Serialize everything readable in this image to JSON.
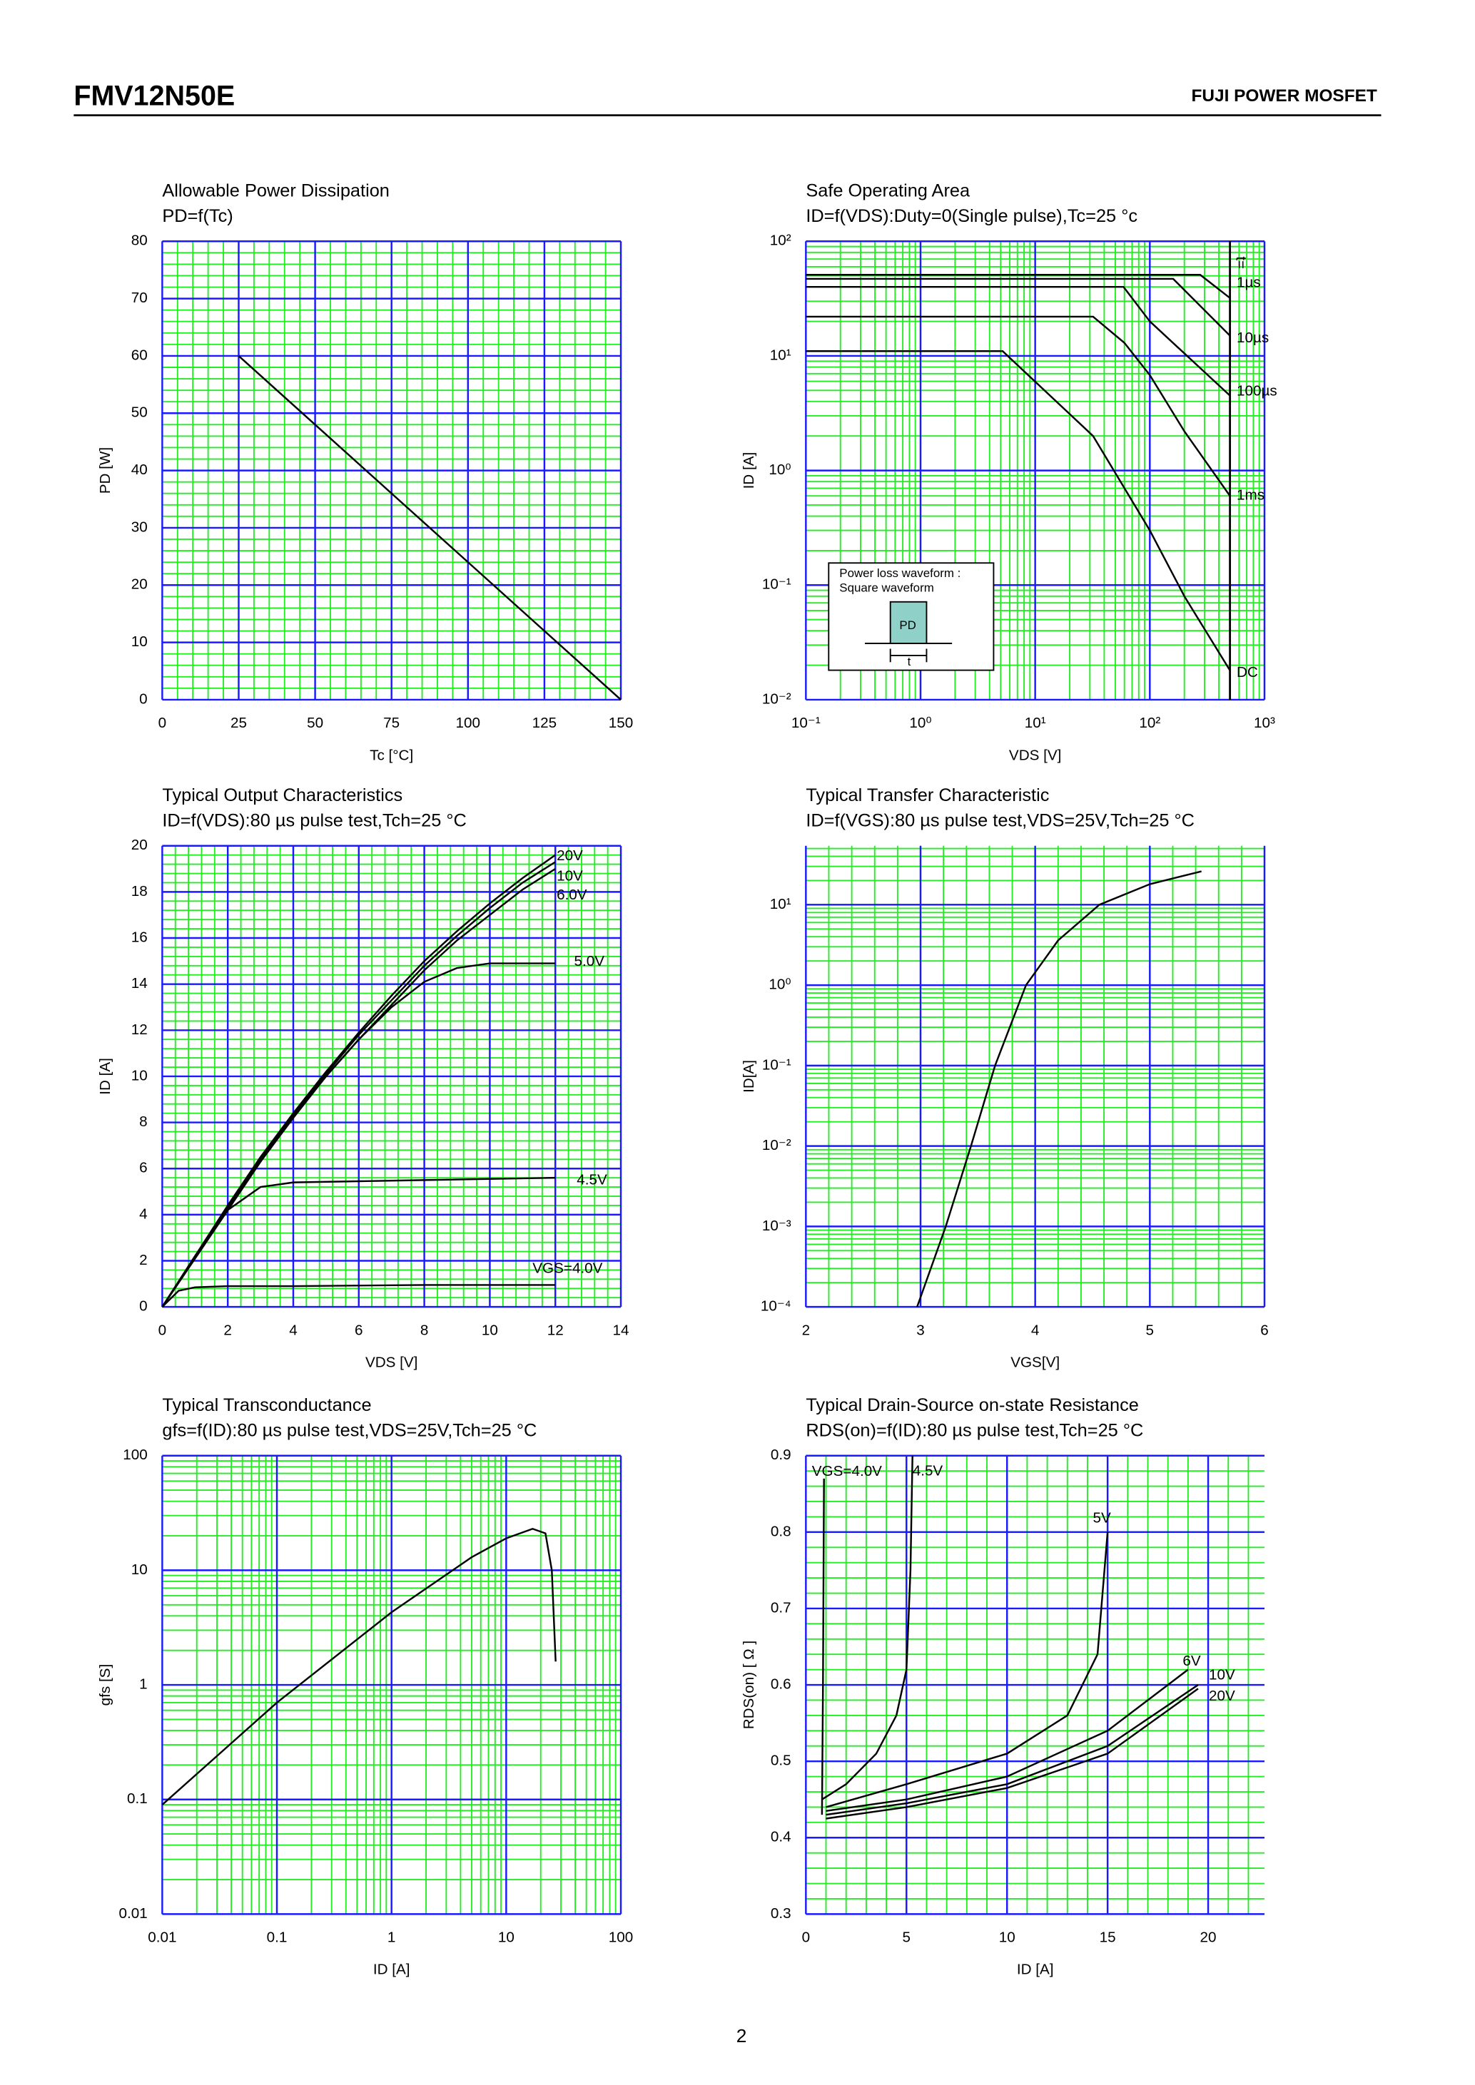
{
  "header": {
    "part_number": "FMV12N50E",
    "series": "FUJI POWER MOSFET"
  },
  "page_number": "2",
  "chart_data": [
    {
      "type": "line",
      "title": "Allowable Power Dissipation",
      "subtitle": "PD=f(Tc)",
      "x_label": "Tc [°C]",
      "y_label": "PD [W]",
      "xscale": "linear",
      "yscale": "linear",
      "xlim": [
        0,
        150
      ],
      "ylim": [
        0,
        80
      ],
      "xticks": [
        0,
        25,
        50,
        75,
        100,
        125,
        150
      ],
      "yticks": [
        0,
        10,
        20,
        30,
        40,
        50,
        60,
        70,
        80
      ],
      "grid": true,
      "grid_color": "#1a1aff",
      "minor_grid_color": "#22ee22",
      "series": [
        {
          "color": "#000000",
          "x": [
            25,
            150
          ],
          "values": [
            60,
            0
          ]
        }
      ]
    },
    {
      "type": "line",
      "title": "Safe Operating Area",
      "subtitle": "ID=f(VDS):Duty=0(Single pulse),Tc=25 °c",
      "x_label": "VDS [V]",
      "y_label": "ID [A]",
      "xscale": "log",
      "yscale": "log",
      "xlim": [
        0.1,
        1000
      ],
      "ylim": [
        0.01,
        100
      ],
      "xticks": [
        {
          "value": 0.1,
          "label": "10⁻¹"
        },
        {
          "value": 1,
          "label": "10⁰"
        },
        {
          "value": 10,
          "label": "10¹"
        },
        {
          "value": 100,
          "label": "10²"
        },
        {
          "value": 1000,
          "label": "10³"
        }
      ],
      "yticks": [
        {
          "value": 0.01,
          "label": "10⁻²"
        },
        {
          "value": 0.1,
          "label": "10⁻¹"
        },
        {
          "value": 1,
          "label": "10⁰"
        },
        {
          "value": 10,
          "label": "10¹"
        },
        {
          "value": 100,
          "label": "10²"
        }
      ],
      "grid": true,
      "grid_color": "#1a1aff",
      "minor_grid_color": "#22ee22",
      "annotation": "t=",
      "vlines": [
        500
      ],
      "inset": {
        "lines": [
          "Power loss waveform :",
          "Square waveform"
        ],
        "pulse_label": "PD",
        "width_label": "t"
      },
      "series": [
        {
          "name": "1µs",
          "color": "#000000",
          "x": [
            0.1,
            275,
            500
          ],
          "values": [
            51,
            51,
            32
          ]
        },
        {
          "name": "10µs",
          "color": "#000000",
          "x": [
            0.1,
            160,
            500
          ],
          "values": [
            47,
            47,
            15
          ]
        },
        {
          "name": "100µs",
          "color": "#000000",
          "x": [
            0.1,
            59,
            100,
            500
          ],
          "values": [
            40,
            40,
            20,
            4.5
          ]
        },
        {
          "name": "1ms",
          "color": "#000000",
          "x": [
            0.1,
            32,
            60,
            100,
            200,
            500
          ],
          "values": [
            22,
            22,
            13,
            6.8,
            2.2,
            0.6
          ]
        },
        {
          "name": "DC",
          "color": "#000000",
          "x": [
            0.1,
            5.2,
            32,
            100,
            200,
            500
          ],
          "values": [
            11,
            11,
            2,
            0.3,
            0.08,
            0.018
          ]
        }
      ]
    },
    {
      "type": "line",
      "title": "Typical Output Characteristics",
      "subtitle": "ID=f(VDS):80 µs pulse test,Tch=25 °C",
      "x_label": "VDS [V]",
      "y_label": "ID [A]",
      "xscale": "linear",
      "yscale": "linear",
      "xlim": [
        0,
        14
      ],
      "ylim": [
        0,
        20
      ],
      "xticks": [
        0,
        2,
        4,
        6,
        8,
        10,
        12,
        14
      ],
      "yticks": [
        0,
        2,
        4,
        6,
        8,
        10,
        12,
        14,
        16,
        18,
        20
      ],
      "grid": true,
      "grid_color": "#1a1aff",
      "minor_grid_color": "#22ee22",
      "series": [
        {
          "name": "20V",
          "color": "#000000",
          "x": [
            0,
            1,
            2,
            3,
            4,
            5,
            6,
            7,
            8,
            9,
            10,
            11,
            12
          ],
          "values": [
            0,
            2.2,
            4.4,
            6.5,
            8.4,
            10.2,
            11.9,
            13.5,
            15,
            16.3,
            17.5,
            18.6,
            19.6
          ]
        },
        {
          "name": "10V",
          "color": "#000000",
          "x": [
            0,
            1,
            2,
            3,
            4,
            5,
            6,
            7,
            8,
            9,
            10,
            11,
            12
          ],
          "values": [
            0,
            2.2,
            4.3,
            6.4,
            8.3,
            10.1,
            11.8,
            13.3,
            14.8,
            16.1,
            17.3,
            18.4,
            19.3
          ]
        },
        {
          "name": "6.0V",
          "color": "#000000",
          "x": [
            0,
            1,
            2,
            3,
            4,
            5,
            6,
            7,
            8,
            9,
            10,
            11,
            12
          ],
          "values": [
            0,
            2.1,
            4.2,
            6.3,
            8.2,
            10,
            11.6,
            13.1,
            14.6,
            15.9,
            17,
            18.1,
            19
          ]
        },
        {
          "name": "5.0V",
          "color": "#000000",
          "x": [
            0,
            1,
            2,
            3,
            4,
            5,
            6,
            7,
            8,
            9,
            10,
            12
          ],
          "values": [
            0,
            2.1,
            4.2,
            6.3,
            8.3,
            10,
            11.6,
            13,
            14.1,
            14.7,
            14.9,
            14.9
          ]
        },
        {
          "name": "4.5V",
          "color": "#000000",
          "x": [
            0,
            1,
            2,
            3,
            4,
            6,
            8,
            12
          ],
          "values": [
            0,
            2.2,
            4.2,
            5.2,
            5.4,
            5.45,
            5.5,
            5.6
          ]
        },
        {
          "name": "VGS=4.0V",
          "color": "#000000",
          "x": [
            0,
            0.5,
            1,
            2,
            4,
            8,
            12
          ],
          "values": [
            0,
            0.7,
            0.85,
            0.9,
            0.9,
            0.95,
            0.95
          ]
        }
      ]
    },
    {
      "type": "line",
      "title": "Typical Transfer Characteristic",
      "subtitle": "ID=f(VGS):80 µs pulse test,VDS=25V,Tch=25 °C",
      "x_label": "VGS[V]",
      "y_label": "ID[A]",
      "xscale": "linear",
      "yscale": "log",
      "xlim": [
        2,
        6
      ],
      "ylim": [
        0.0001,
        54
      ],
      "xticks": [
        2,
        3,
        4,
        5,
        6
      ],
      "yticks": [
        {
          "value": 0.0001,
          "label": "10⁻⁴"
        },
        {
          "value": 0.001,
          "label": "10⁻³"
        },
        {
          "value": 0.01,
          "label": "10⁻²"
        },
        {
          "value": 0.1,
          "label": "10⁻¹"
        },
        {
          "value": 1,
          "label": "10⁰"
        },
        {
          "value": 10,
          "label": "10¹"
        }
      ],
      "grid": true,
      "grid_color": "#1a1aff",
      "minor_grid_color": "#22ee22",
      "series": [
        {
          "color": "#000000",
          "x": [
            2.97,
            3.22,
            3.44,
            3.65,
            3.92,
            4.2,
            4.56,
            5.0,
            5.45
          ],
          "values": [
            0.0001,
            0.001,
            0.01,
            0.1,
            1,
            3.6,
            10,
            18,
            26
          ]
        }
      ]
    },
    {
      "type": "line",
      "title": "Typical Transconductance",
      "subtitle": "gfs=f(ID):80 µs pulse test,VDS=25V,Tch=25 °C",
      "x_label": "ID [A]",
      "y_label": "gfs [S]",
      "xscale": "log",
      "yscale": "log",
      "xlim": [
        0.01,
        100
      ],
      "ylim": [
        0.01,
        100
      ],
      "xticks": [
        0.01,
        0.1,
        1,
        10,
        100
      ],
      "yticks": [
        0.01,
        0.1,
        1,
        10,
        100
      ],
      "grid": true,
      "grid_color": "#1a1aff",
      "minor_grid_color": "#22ee22",
      "series": [
        {
          "color": "#000000",
          "x": [
            0.01,
            0.1,
            1,
            5,
            10,
            17,
            22,
            25,
            27
          ],
          "values": [
            0.09,
            0.7,
            4.3,
            13,
            19,
            23,
            21,
            10,
            1.6
          ]
        }
      ]
    },
    {
      "type": "line",
      "title": "Typical Drain-Source on-state Resistance",
      "subtitle": "RDS(on)=f(ID):80  µs pulse test,Tch=25 °C",
      "x_label": "ID [A]",
      "y_label": "RDS(on) [ Ω ]",
      "xscale": "linear",
      "yscale": "linear",
      "xlim": [
        0,
        22.8
      ],
      "ylim": [
        0.3,
        0.9
      ],
      "xticks": [
        0,
        5,
        10,
        15,
        20
      ],
      "yticks": [
        0.3,
        0.4,
        0.5,
        0.6,
        0.7,
        0.8,
        0.9
      ],
      "grid": true,
      "grid_color": "#1a1aff",
      "minor_grid_color": "#22ee22",
      "series": [
        {
          "name": "VGS=4.0V",
          "color": "#000000",
          "x": [
            0.8,
            0.85,
            0.9
          ],
          "values": [
            0.43,
            0.6,
            0.87
          ]
        },
        {
          "name": "4.5V",
          "color": "#000000",
          "x": [
            0.8,
            2,
            3.5,
            4.5,
            5,
            5.2,
            5.3
          ],
          "values": [
            0.45,
            0.47,
            0.51,
            0.56,
            0.62,
            0.75,
            0.9
          ]
        },
        {
          "name": "5V",
          "color": "#000000",
          "x": [
            1,
            5,
            10,
            13,
            14.5,
            15
          ],
          "values": [
            0.44,
            0.47,
            0.51,
            0.56,
            0.64,
            0.8
          ]
        },
        {
          "name": "6V",
          "color": "#000000",
          "x": [
            1,
            5,
            10,
            15,
            19
          ],
          "values": [
            0.435,
            0.45,
            0.48,
            0.54,
            0.62
          ]
        },
        {
          "name": "10V",
          "color": "#000000",
          "x": [
            1,
            5,
            10,
            15,
            19.5
          ],
          "values": [
            0.43,
            0.445,
            0.47,
            0.52,
            0.6
          ]
        },
        {
          "name": "20V",
          "color": "#000000",
          "x": [
            1,
            5,
            10,
            15,
            19.5
          ],
          "values": [
            0.425,
            0.44,
            0.465,
            0.51,
            0.595
          ]
        }
      ]
    }
  ]
}
